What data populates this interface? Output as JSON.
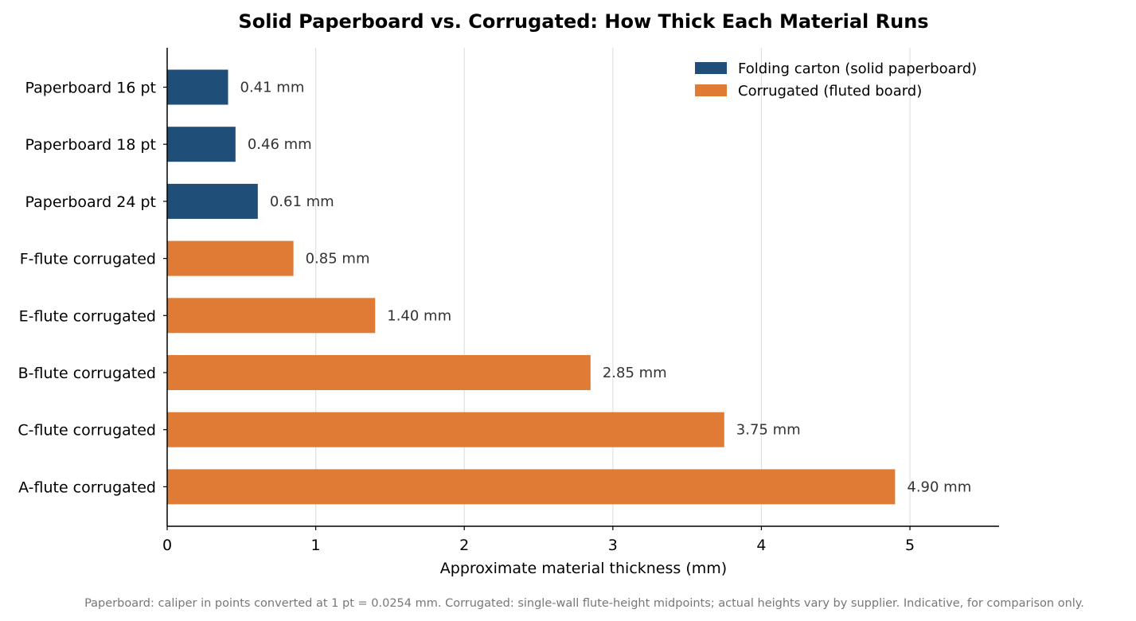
{
  "chart_data": {
    "type": "bar",
    "orientation": "horizontal",
    "title": "Solid Paperboard vs. Corrugated: How Thick Each Material Runs",
    "xlabel": "Approximate material thickness (mm)",
    "ylabel": "",
    "xlim": [
      0,
      5.6
    ],
    "xticks": [
      0,
      1,
      2,
      3,
      4,
      5
    ],
    "grid": "vertical",
    "legend_position": "top-right",
    "categories": [
      "Paperboard 16 pt",
      "Paperboard 18 pt",
      "Paperboard 24 pt",
      "F-flute corrugated",
      "E-flute corrugated",
      "B-flute corrugated",
      "C-flute corrugated",
      "A-flute corrugated"
    ],
    "values": [
      0.41,
      0.46,
      0.61,
      0.85,
      1.4,
      2.85,
      3.75,
      4.9
    ],
    "value_labels": [
      "0.41 mm",
      "0.46 mm",
      "0.61 mm",
      "0.85 mm",
      "1.40 mm",
      "2.85 mm",
      "3.75 mm",
      "4.90 mm"
    ],
    "groups": [
      "paperboard",
      "paperboard",
      "paperboard",
      "corrugated",
      "corrugated",
      "corrugated",
      "corrugated",
      "corrugated"
    ],
    "series": [
      {
        "key": "paperboard",
        "name": "Folding carton (solid paperboard)",
        "color": "#1f4e79"
      },
      {
        "key": "corrugated",
        "name": "Corrugated (fluted board)",
        "color": "#e07b35"
      }
    ],
    "footnote": "Paperboard: caliper in points converted at 1 pt = 0.0254 mm. Corrugated: single-wall flute-height midpoints; actual heights vary by supplier. Indicative, for comparison only."
  }
}
